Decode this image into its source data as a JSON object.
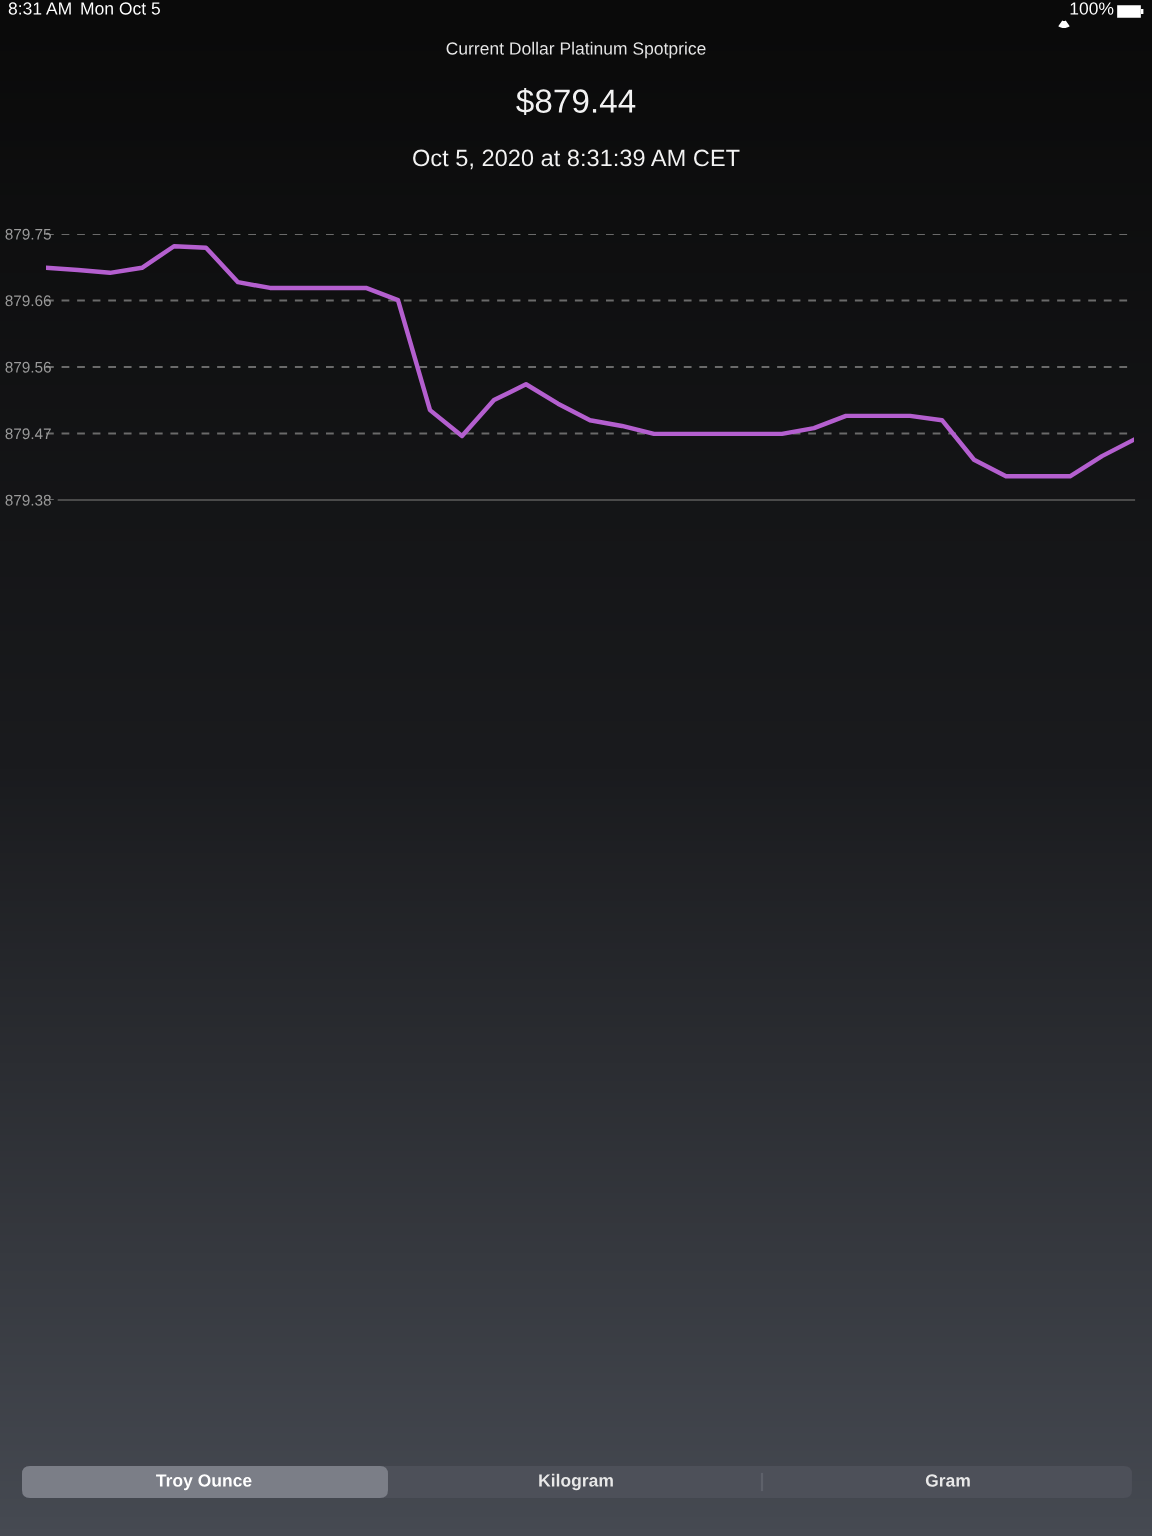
{
  "chart_data": {
    "type": "line",
    "title": "Current Dollar Platinum Spotprice",
    "subtitle": "$879.44",
    "annotations": [
      "Oct 5, 2020 at 8:31:39 AM CET",
      "8:31 AM",
      "Mon Oct 5",
      "100%",
      "Troy Ounce",
      "Kilogram",
      "Gram"
    ],
    "categories": [
      null,
      null,
      null,
      null,
      null,
      null,
      null,
      null,
      null,
      null,
      null,
      null,
      null,
      null,
      null,
      null,
      null,
      null,
      null,
      null,
      null,
      null,
      null,
      null,
      null,
      null,
      null,
      null,
      null,
      null,
      null,
      null,
      null,
      null,
      null
    ],
    "series": [
      {
        "color": "#b45fcf",
        "values": [
          879.703,
          879.7,
          879.696,
          879.703,
          879.733,
          879.731,
          879.683,
          879.675,
          879.675,
          879.675,
          879.675,
          879.658,
          879.505,
          879.469,
          879.519,
          879.541,
          879.514,
          879.491,
          879.483,
          879.472,
          879.472,
          879.472,
          879.472,
          879.472,
          879.48,
          879.497,
          879.497,
          879.497,
          879.491,
          879.436,
          879.413,
          879.413,
          879.413,
          879.441,
          879.464
        ]
      }
    ],
    "ylim": [
      879.38,
      879.75
    ],
    "yticks": [
      {
        "value": 879.38,
        "label": "879.38"
      },
      {
        "value": 879.4725,
        "label": "879.47"
      },
      {
        "value": 879.565,
        "label": "879.56"
      },
      {
        "value": 879.6575,
        "label": "879.66"
      },
      {
        "value": 879.75,
        "label": "879.75"
      }
    ],
    "grid": "y",
    "line_style": "solid",
    "marker": "none",
    "legend": false
  }
}
